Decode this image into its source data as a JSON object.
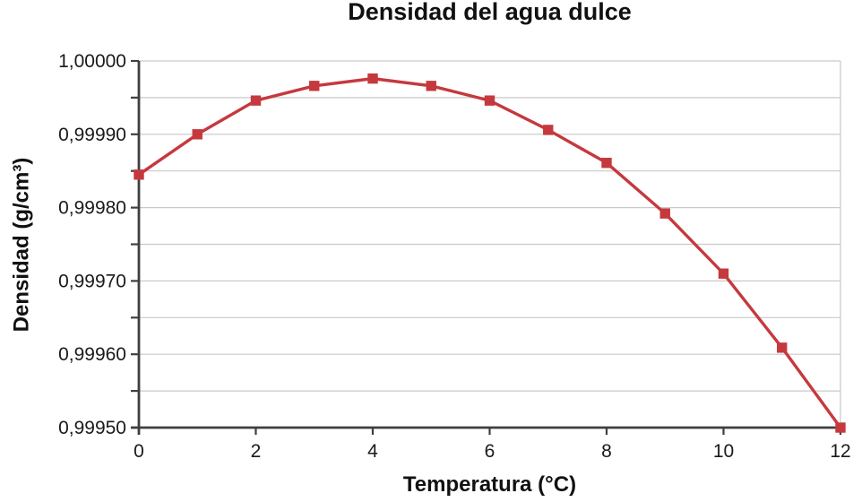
{
  "title": "Densidad del agua dulce",
  "chart_data": {
    "type": "line",
    "title": "Densidad del agua dulce",
    "xlabel": "Temperatura (°C)",
    "ylabel": "Densidad (g/cm³)",
    "x": [
      0,
      1,
      2,
      3,
      4,
      5,
      6,
      7,
      8,
      9,
      10,
      11,
      12
    ],
    "y": [
      0.999845,
      0.9999,
      0.999946,
      0.999966,
      0.999976,
      0.999966,
      0.999946,
      0.999906,
      0.999861,
      0.999792,
      0.99971,
      0.999609,
      0.9995
    ],
    "xlim": [
      0,
      12
    ],
    "ylim": [
      0.9995,
      1.0
    ],
    "x_tick_values": [
      0,
      2,
      4,
      6,
      8,
      10,
      12
    ],
    "x_tick_labels": [
      "0",
      "2",
      "4",
      "6",
      "8",
      "10",
      "12"
    ],
    "y_tick_values": [
      1.0,
      0.9999,
      0.9998,
      0.9997,
      0.9996,
      0.9995
    ],
    "y_tick_labels": [
      "1,00000",
      "0,99990",
      "0,99980",
      "0,99970",
      "0,99960",
      "0,99950"
    ],
    "y_minor_step": 5e-05,
    "grid": {
      "horizontal": true,
      "minor_lines": true,
      "right_border": true
    },
    "legend": "none",
    "marker": "square",
    "colors": {
      "line": "#c5393e",
      "marker": "#c5393e",
      "axis": "#3f3f3f",
      "gridline": "#c9c9c9",
      "text": "#1a1a1a",
      "background": "#ffffff"
    }
  }
}
